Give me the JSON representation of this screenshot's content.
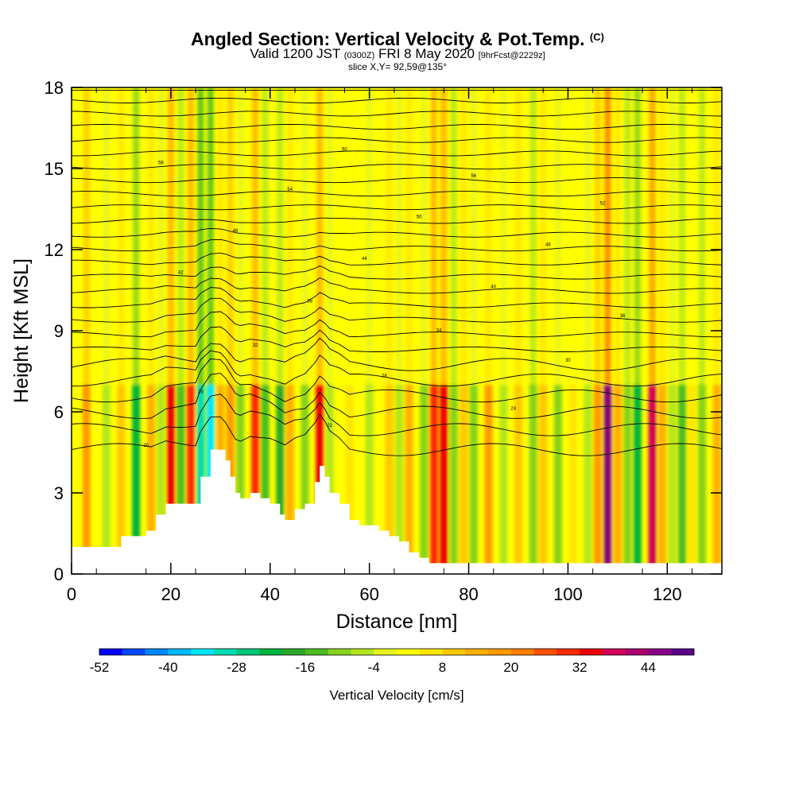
{
  "header": {
    "title_main": "Angled Section: Vertical Velocity & Pot.Temp.",
    "title_suffix": "(C)",
    "valid_prefix": "Valid 1200 JST",
    "valid_zulu": "(0300Z)",
    "valid_date": "FRI 8 May 2020",
    "forecast_info": "[9hrFcst@2229z]",
    "slice_info": "slice X,Y= 92,59@135°"
  },
  "chart_data": {
    "type": "heatmap",
    "xlabel": "Distance [nm]",
    "ylabel": "Height [Kft MSL]",
    "xlim": [
      0,
      131
    ],
    "ylim": [
      0,
      18
    ],
    "xticks": [
      0,
      20,
      40,
      60,
      80,
      100,
      120
    ],
    "yticks": [
      0,
      3,
      6,
      9,
      12,
      15,
      18
    ],
    "terrain": {
      "x": [
        0,
        5,
        10,
        13,
        15,
        17,
        19,
        21,
        23,
        25,
        26,
        28,
        29,
        30,
        31,
        32,
        33,
        34,
        36,
        38,
        40,
        42,
        43,
        45,
        47,
        49,
        50,
        51,
        52,
        54,
        56,
        58,
        60,
        62,
        64,
        66,
        68,
        70,
        72,
        131
      ],
      "height": [
        1.0,
        1.0,
        1.4,
        1.4,
        1.6,
        2.2,
        2.6,
        2.6,
        2.6,
        2.6,
        3.6,
        4.6,
        4.6,
        4.6,
        4.2,
        3.6,
        3.0,
        2.8,
        3.0,
        2.8,
        2.6,
        2.2,
        2.0,
        2.4,
        2.6,
        3.4,
        4.0,
        3.6,
        3.0,
        2.6,
        2.0,
        1.8,
        1.8,
        1.6,
        1.4,
        1.2,
        0.8,
        0.6,
        0.4,
        0.3
      ]
    },
    "theta_contours": {
      "levels": [
        20,
        22,
        24,
        26,
        28,
        30,
        32,
        34,
        36,
        38,
        40,
        42,
        44,
        46,
        48,
        50,
        52,
        54,
        56,
        58,
        60,
        62,
        64,
        66,
        68,
        70
      ],
      "label_values": [
        "20",
        "22",
        "24",
        "26",
        "28",
        "30",
        "32",
        "34",
        "36",
        "38",
        "40",
        "42",
        "44",
        "46",
        "48",
        "50",
        "52",
        "54",
        "56",
        "58",
        "60"
      ]
    },
    "wind_columns": [
      {
        "x": 3,
        "w": 17
      },
      {
        "x": 7,
        "w": -8
      },
      {
        "x": 10,
        "w": 10
      },
      {
        "x": 13,
        "w": -22
      },
      {
        "x": 16,
        "w": 12
      },
      {
        "x": 18,
        "w": -6
      },
      {
        "x": 20,
        "w": 32
      },
      {
        "x": 22,
        "w": -14
      },
      {
        "x": 24,
        "w": 28
      },
      {
        "x": 26,
        "w": -30
      },
      {
        "x": 28,
        "w": -36
      },
      {
        "x": 30,
        "w": 14
      },
      {
        "x": 32,
        "w": 18
      },
      {
        "x": 34,
        "w": -10
      },
      {
        "x": 37,
        "w": 30
      },
      {
        "x": 39,
        "w": -14
      },
      {
        "x": 42,
        "w": -18
      },
      {
        "x": 44,
        "w": 12
      },
      {
        "x": 47,
        "w": -10
      },
      {
        "x": 50,
        "w": 32
      },
      {
        "x": 52,
        "w": -8
      },
      {
        "x": 56,
        "w": 6
      },
      {
        "x": 60,
        "w": -6
      },
      {
        "x": 64,
        "w": 10
      },
      {
        "x": 66,
        "w": -8
      },
      {
        "x": 68,
        "w": 14
      },
      {
        "x": 71,
        "w": -10
      },
      {
        "x": 73,
        "w": 28
      },
      {
        "x": 75,
        "w": 34
      },
      {
        "x": 77,
        "w": -12
      },
      {
        "x": 79,
        "w": 10
      },
      {
        "x": 81,
        "w": -10
      },
      {
        "x": 84,
        "w": 16
      },
      {
        "x": 87,
        "w": -6
      },
      {
        "x": 90,
        "w": 8
      },
      {
        "x": 93,
        "w": -12
      },
      {
        "x": 95,
        "w": 10
      },
      {
        "x": 98,
        "w": -10
      },
      {
        "x": 101,
        "w": 6
      },
      {
        "x": 104,
        "w": -8
      },
      {
        "x": 106,
        "w": 18
      },
      {
        "x": 108,
        "w": 44
      },
      {
        "x": 110,
        "w": 14
      },
      {
        "x": 112,
        "w": -12
      },
      {
        "x": 114,
        "w": -24
      },
      {
        "x": 117,
        "w": 36
      },
      {
        "x": 119,
        "w": 14
      },
      {
        "x": 121,
        "w": -8
      },
      {
        "x": 123,
        "w": -16
      },
      {
        "x": 125,
        "w": 6
      },
      {
        "x": 127,
        "w": -12
      },
      {
        "x": 130,
        "w": 12
      }
    ],
    "colorbar": {
      "title": "Vertical Velocity [cm/s]",
      "tick_labels": [
        "-52",
        "-40",
        "-28",
        "-16",
        "-4",
        "8",
        "20",
        "32",
        "44"
      ],
      "colors": [
        "#0000ff",
        "#0046ff",
        "#0087ff",
        "#00b8ff",
        "#00e6ff",
        "#00dcb4",
        "#00c878",
        "#00b43c",
        "#2aa82a",
        "#4cbd21",
        "#87d21e",
        "#b4e61e",
        "#e6f51e",
        "#ffff00",
        "#ffe600",
        "#ffc800",
        "#ffb000",
        "#ff9a00",
        "#ff7d00",
        "#ff5000",
        "#ff2800",
        "#ee0000",
        "#d2005a",
        "#aa006e",
        "#870087",
        "#5a0087"
      ]
    },
    "colors": {
      "background": "#ffff00",
      "contour": "#000000",
      "terrain": "#ffffff"
    }
  }
}
